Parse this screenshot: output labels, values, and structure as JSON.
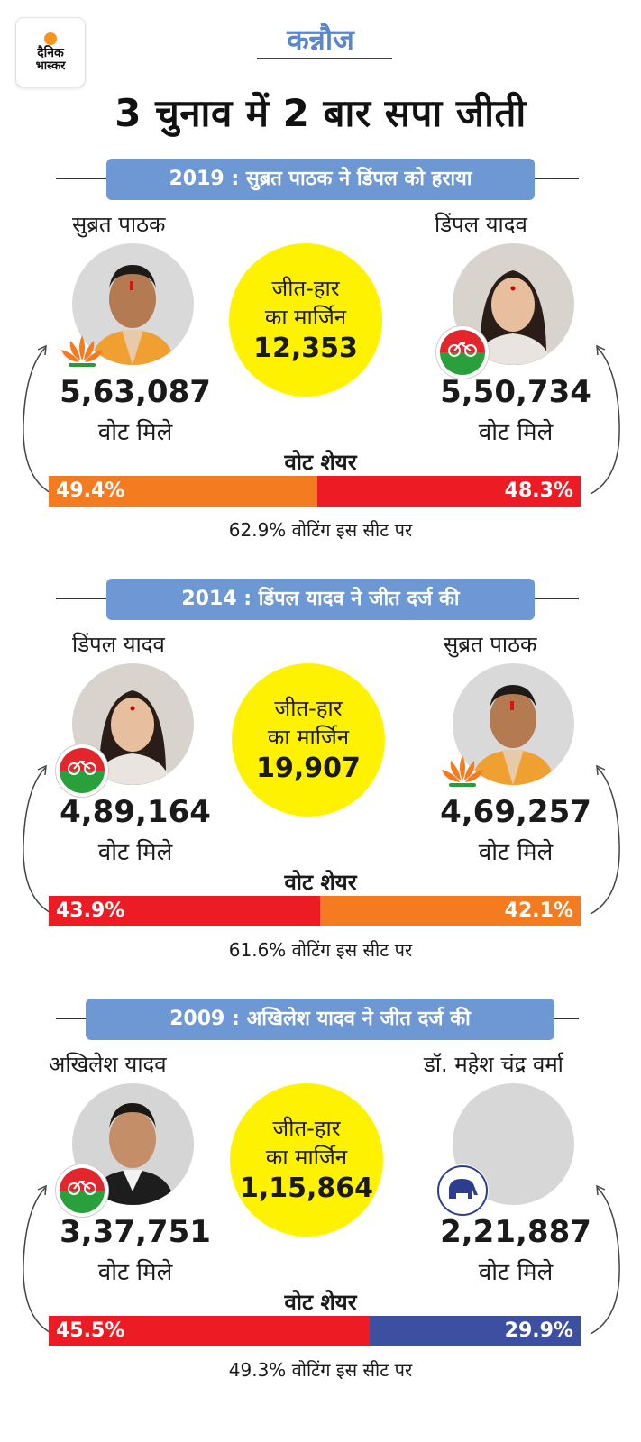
{
  "logo": {
    "line1": "दैनिक",
    "line2": "भास्कर"
  },
  "place": "कन्नौज",
  "headline": "3 चुनाव में 2 बार सपा जीती",
  "margin_label_1": "जीत-हार",
  "margin_label_2": "का मार्जिन",
  "votes_label": "वोट मिले",
  "share_label": "वोट शेयर",
  "sections": [
    {
      "title": "2019 : सुब्रत पाठक ने डिंपल को हराया",
      "left": {
        "name": "सुब्रत पाठक",
        "votes": "5,63,087",
        "party": "bjp-lotus-icon"
      },
      "right": {
        "name": "डिंपल यादव",
        "votes": "5,50,734",
        "party": "sp-cycle-icon"
      },
      "margin": "12,353",
      "share_left": "49.4%",
      "share_right": "48.3%",
      "share_left_value": 49.4,
      "share_right_value": 48.3,
      "color_left": "#f47b20",
      "color_right": "#ed1c24",
      "turnout": "62.9% वोटिंग इस सीट पर"
    },
    {
      "title": "2014 : डिंपल यादव ने जीत दर्ज की",
      "left": {
        "name": "डिंपल यादव",
        "votes": "4,89,164",
        "party": "sp-cycle-icon"
      },
      "right": {
        "name": "सुब्रत पाठक",
        "votes": "4,69,257",
        "party": "bjp-lotus-icon"
      },
      "margin": "19,907",
      "share_left": "43.9%",
      "share_right": "42.1%",
      "share_left_value": 43.9,
      "share_right_value": 42.1,
      "color_left": "#ed1c24",
      "color_right": "#f47b20",
      "turnout": "61.6% वोटिंग इस सीट पर"
    },
    {
      "title": "2009 : अखिलेश यादव ने जीत दर्ज की",
      "left": {
        "name": "अखिलेश यादव",
        "votes": "3,37,751",
        "party": "sp-cycle-icon"
      },
      "right": {
        "name": "डॉ. महेश चंद्र वर्मा",
        "votes": "2,21,887",
        "party": "bsp-elephant-icon"
      },
      "margin": "1,15,864",
      "share_left": "45.5%",
      "share_right": "29.9%",
      "share_left_value": 45.5,
      "share_right_value": 29.9,
      "color_left": "#ed1c24",
      "color_right": "#3d4fa0",
      "turnout": "49.3% वोटिंग इस सीट पर"
    }
  ]
}
